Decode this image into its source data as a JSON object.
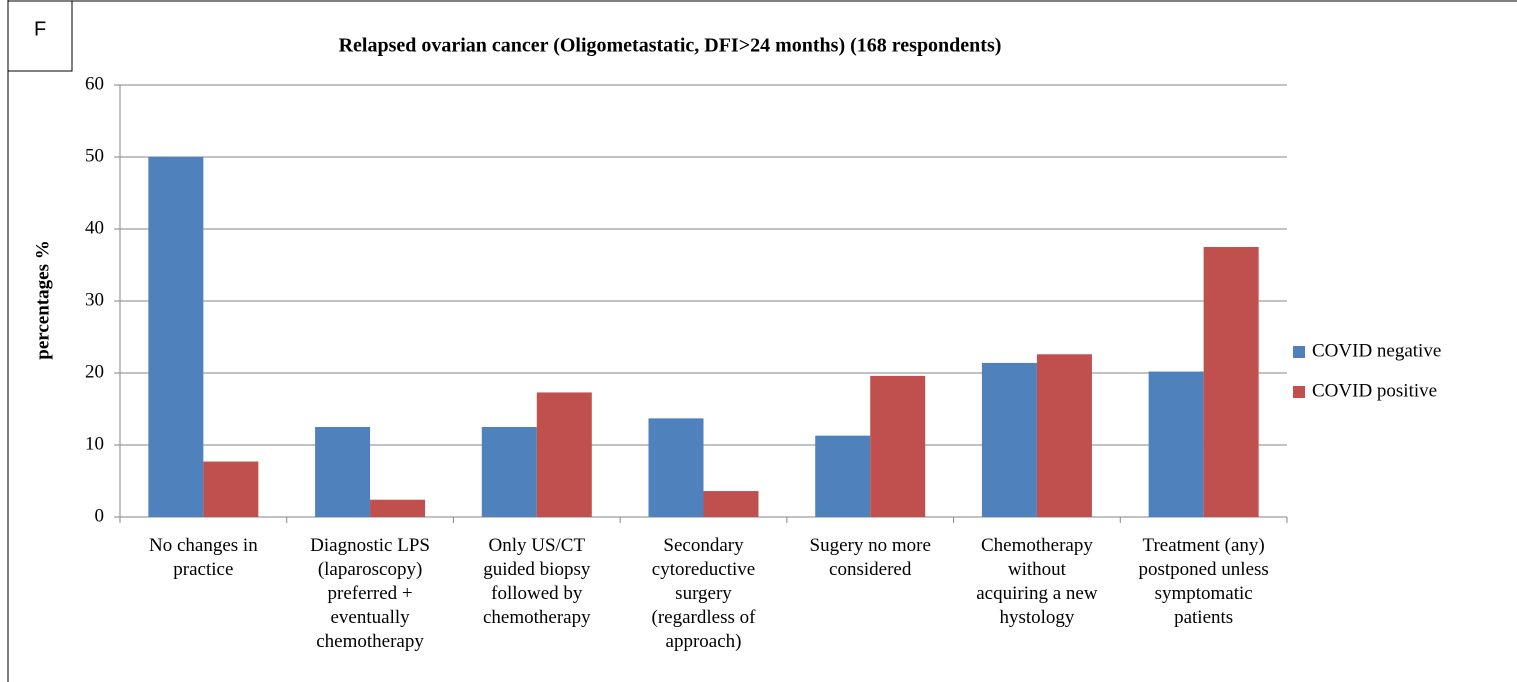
{
  "chart_data": {
    "type": "bar",
    "panel_label": "F",
    "title": "Relapsed ovarian cancer (Oligometastatic, DFI>24 months) (168 respondents)",
    "y_label": "percentages %",
    "categories": [
      "No changes in\npractice",
      "Diagnostic LPS\n(laparoscopy)\npreferred +\neventually\nchemotherapy",
      "Only US/CT\nguided biopsy\nfollowed by\nchemotherapy",
      "Secondary\ncytoreductive\nsurgery\n(regardless of\napproach)",
      "Sugery no more\nconsidered",
      "Chemotherapy\nwithout\nacquiring a new\nhystology",
      "Treatment (any)\npostponed unless\nsymptomatic\npatients"
    ],
    "series": [
      {
        "name": "COVID negative",
        "color": "#4f81bd",
        "values": [
          50,
          12.5,
          12.5,
          13.7,
          11.3,
          21.4,
          20.2
        ]
      },
      {
        "name": "COVID positive",
        "color": "#c0504d",
        "values": [
          7.7,
          2.4,
          17.3,
          3.6,
          19.6,
          22.6,
          37.5
        ]
      }
    ],
    "ylim": [
      0,
      60
    ],
    "yticks": [
      0,
      10,
      20,
      30,
      40,
      50,
      60
    ],
    "grid": true,
    "legend": "right"
  }
}
